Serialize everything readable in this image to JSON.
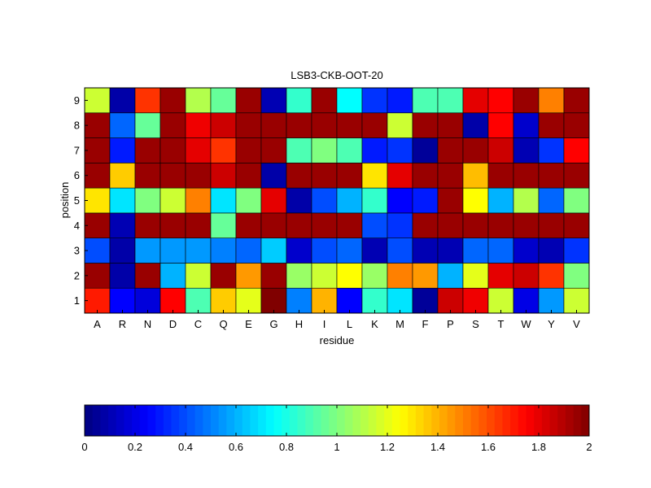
{
  "chart_data": {
    "type": "heatmap",
    "title": "LSB3-CKB-OOT-20",
    "xlabel": "residue",
    "ylabel": "position",
    "x_categories": [
      "A",
      "R",
      "N",
      "D",
      "C",
      "Q",
      "E",
      "G",
      "H",
      "I",
      "L",
      "K",
      "M",
      "F",
      "P",
      "S",
      "T",
      "W",
      "Y",
      "V"
    ],
    "y_categories": [
      "1",
      "2",
      "3",
      "4",
      "5",
      "6",
      "7",
      "8",
      "9"
    ],
    "values": [
      [
        1.7,
        0.25,
        0.18,
        1.75,
        0.9,
        1.35,
        1.2,
        2.0,
        0.5,
        1.4,
        0.25,
        0.85,
        0.7,
        0.05,
        1.85,
        1.78,
        1.15,
        0.2,
        0.55,
        1.15
      ],
      [
        1.95,
        0.08,
        1.95,
        0.6,
        1.15,
        1.95,
        1.45,
        1.95,
        1.05,
        1.15,
        1.25,
        1.05,
        1.5,
        1.45,
        0.6,
        1.2,
        1.8,
        1.85,
        1.65,
        1.0
      ],
      [
        0.4,
        0.08,
        0.55,
        0.55,
        0.55,
        0.5,
        0.45,
        0.65,
        0.15,
        0.4,
        0.45,
        0.1,
        0.4,
        0.1,
        0.1,
        0.45,
        0.45,
        0.15,
        0.1,
        0.35
      ],
      [
        1.95,
        0.1,
        1.95,
        1.95,
        1.95,
        0.95,
        1.95,
        1.95,
        1.95,
        1.95,
        1.95,
        0.4,
        0.35,
        1.95,
        1.95,
        1.95,
        1.95,
        1.95,
        1.95,
        1.95
      ],
      [
        1.3,
        0.7,
        1.0,
        1.15,
        1.5,
        0.7,
        1.0,
        1.8,
        0.08,
        0.4,
        0.6,
        0.85,
        0.25,
        0.3,
        1.95,
        1.25,
        0.6,
        1.1,
        0.45,
        1.0
      ],
      [
        1.95,
        1.35,
        1.95,
        1.95,
        1.95,
        1.85,
        1.95,
        0.08,
        1.95,
        1.95,
        1.95,
        1.3,
        1.8,
        1.95,
        1.95,
        1.38,
        1.95,
        1.95,
        1.95,
        1.95
      ],
      [
        1.95,
        0.3,
        1.95,
        1.95,
        1.8,
        1.65,
        1.95,
        1.95,
        0.9,
        1.0,
        0.9,
        0.3,
        0.35,
        0.05,
        1.95,
        1.95,
        1.85,
        0.1,
        0.35,
        1.75
      ],
      [
        1.95,
        0.45,
        0.95,
        1.95,
        1.78,
        1.85,
        1.95,
        1.95,
        1.95,
        1.95,
        1.95,
        1.95,
        1.15,
        1.95,
        1.95,
        0.08,
        1.75,
        0.15,
        1.95,
        1.95
      ],
      [
        1.15,
        0.08,
        1.65,
        1.95,
        1.1,
        0.95,
        1.95,
        0.1,
        0.85,
        1.95,
        0.75,
        0.35,
        0.3,
        0.9,
        0.9,
        1.8,
        1.75,
        1.95,
        1.5,
        1.95
      ]
    ],
    "colorbar": {
      "min": 0,
      "max": 2,
      "ticks": [
        "0",
        "0.2",
        "0.4",
        "0.6",
        "0.8",
        "1",
        "1.2",
        "1.4",
        "1.6",
        "1.8",
        "2"
      ]
    },
    "colormap": "jet"
  }
}
